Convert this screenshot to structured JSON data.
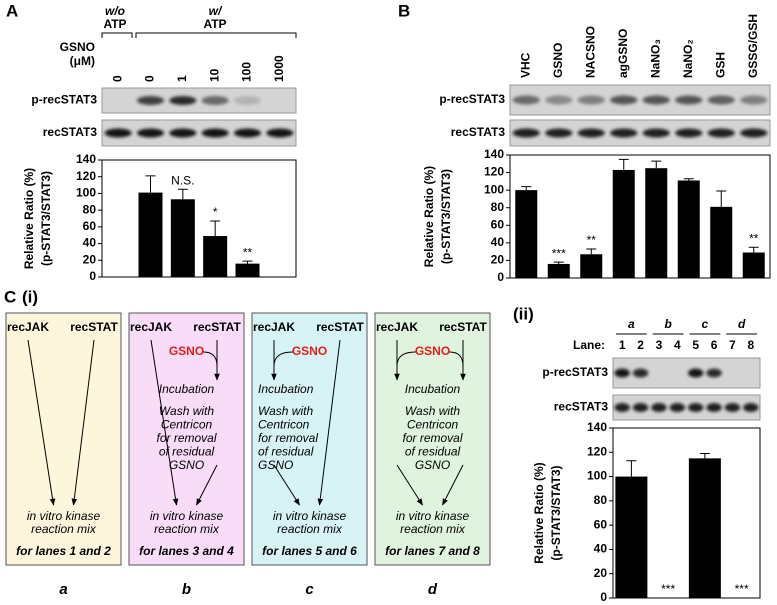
{
  "panel_labels": [
    "A",
    "B",
    "C",
    "(i)",
    "(ii)"
  ],
  "conditions": [
    {
      "top": "w/o",
      "bottom": "ATP"
    },
    {
      "top": "w/",
      "bottom": "ATP"
    }
  ],
  "gsno_label": [
    "GSNO",
    "(μM)"
  ],
  "blot_labels": [
    "p-recSTAT3",
    "recSTAT3"
  ],
  "lane_header": "Lane:",
  "lanes": [
    "1",
    "2",
    "3",
    "4",
    "5",
    "6",
    "7",
    "8"
  ],
  "diagram": {
    "boxes": [
      {
        "label": "a",
        "inputs": [
          "recJAK",
          "recSTAT"
        ],
        "output": [
          "in vitro kinase",
          "reaction mix"
        ],
        "lanes": "for lanes 1 and 2"
      },
      {
        "label": "b",
        "inputs": [
          "recJAK",
          "recSTAT"
        ],
        "treatment": "GSNO",
        "steps": [
          "Incubation"
        ],
        "wash": [
          "Wash with",
          "Centricon",
          "for removal",
          "of residual",
          "GSNO"
        ],
        "output": [
          "in vitro kinase",
          "reaction mix"
        ],
        "lanes": "for lanes 3 and 4"
      },
      {
        "label": "c",
        "inputs": [
          "recJAK",
          "recSTAT"
        ],
        "treatment": "GSNO",
        "steps": [
          "Incubation"
        ],
        "wash": [
          "Wash with",
          "Centricon",
          "for removal",
          "of residual",
          "GSNO"
        ],
        "output": [
          "in vitro kinase",
          "reaction mix"
        ],
        "lanes": "for lanes 5 and 6"
      },
      {
        "label": "d",
        "inputs": [
          "recJAK",
          "recSTAT"
        ],
        "treatment": "GSNO",
        "steps": [
          "Incubation"
        ],
        "wash": [
          "Wash with",
          "Centricon",
          "for removal",
          "of residual",
          "GSNO"
        ],
        "output": [
          "in vitro kinase",
          "reaction mix"
        ],
        "lanes": "for lanes 7 and 8"
      }
    ]
  },
  "chart_data": [
    {
      "type": "bar",
      "categories": [
        "0",
        "0",
        "1",
        "10",
        "100",
        "1000"
      ],
      "values": [
        null,
        101,
        93,
        49,
        16,
        null
      ],
      "errors": [
        null,
        20,
        12,
        18,
        3,
        null
      ],
      "annotations": [
        null,
        null,
        "N.S.",
        "*",
        "**",
        null
      ],
      "ylabel": [
        "Relative Ratio (%)",
        "(p-STAT3/STAT3)"
      ],
      "ylim": [
        0,
        140
      ],
      "yticks": [
        0,
        20,
        40,
        60,
        80,
        100,
        120,
        140
      ],
      "color": "#000000"
    },
    {
      "type": "bar",
      "categories": [
        "VHC",
        "GSNO",
        "NACSNO",
        "agGSNO",
        "NaNO₃",
        "NaNO₂",
        "GSH",
        "GSSG/GSH"
      ],
      "values": [
        100,
        16,
        27,
        123,
        125,
        111,
        81,
        29
      ],
      "errors": [
        4,
        2,
        6,
        12,
        8,
        2,
        18,
        6
      ],
      "annotations": [
        null,
        "***",
        "**",
        null,
        null,
        null,
        null,
        "**"
      ],
      "ylabel": [
        "Relative Ratio (%)",
        "(p-STAT3/STAT3)"
      ],
      "ylim": [
        0,
        140
      ],
      "yticks": [
        0,
        20,
        40,
        60,
        80,
        100,
        120,
        140
      ],
      "color": "#000000"
    },
    {
      "type": "bar",
      "categories": [
        "a",
        "b",
        "c",
        "d"
      ],
      "values": [
        100,
        0,
        115,
        0
      ],
      "errors": [
        13,
        null,
        4,
        null
      ],
      "annotations": [
        null,
        "***",
        null,
        "***"
      ],
      "ylabel": [
        "Relative Ratio (%)",
        "(p-STAT3/STAT3)"
      ],
      "ylim": [
        0,
        140
      ],
      "yticks": [
        0,
        20,
        40,
        60,
        80,
        100,
        120,
        140
      ],
      "color": "#000000"
    }
  ]
}
